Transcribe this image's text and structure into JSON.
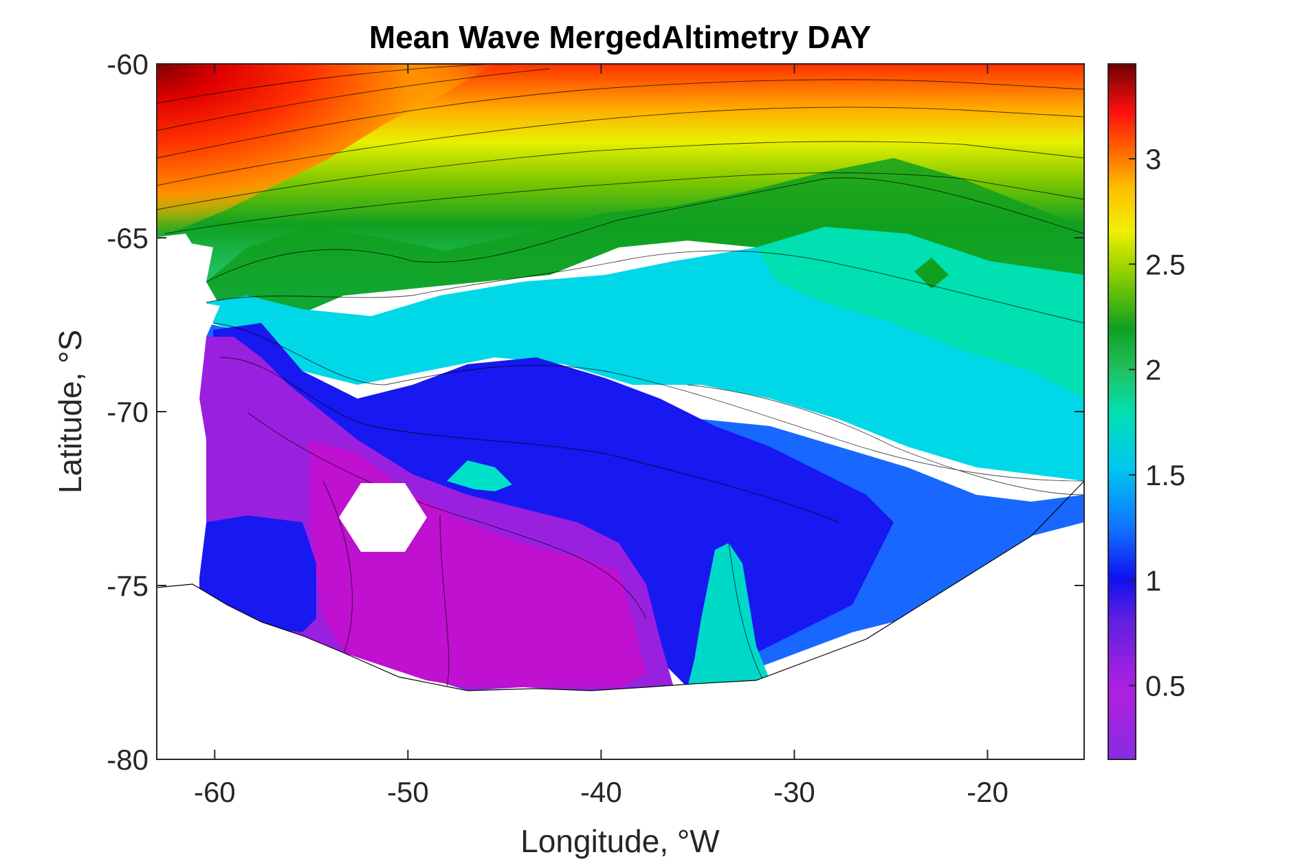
{
  "chart_data": {
    "type": "heatmap",
    "plot_kind": "filled contour map",
    "title": "Mean Wave MergedAltimetry DAY",
    "xlabel": "Longitude, °W",
    "ylabel": "Latitude, °S",
    "xlim": [
      -63,
      -15
    ],
    "ylim": [
      -80,
      -60
    ],
    "xticks": [
      -60,
      -50,
      -40,
      -30,
      -20
    ],
    "yticks": [
      -80,
      -75,
      -70,
      -65,
      -60
    ],
    "colorbar": {
      "range": [
        0.15,
        3.45
      ],
      "ticks": [
        0.5,
        1,
        1.5,
        2,
        2.5,
        3
      ],
      "colormap": "rainbow-purple-to-darkred",
      "colors": [
        "#8a2be2",
        "#a020f0",
        "#c000d0",
        "#5a2ce0",
        "#2020e8",
        "#1060ff",
        "#1e90ff",
        "#00d0e8",
        "#00e0c0",
        "#20c060",
        "#10a020",
        "#7ac000",
        "#e0f000",
        "#ffd000",
        "#ff8000",
        "#ff2000",
        "#c00000",
        "#700000"
      ]
    },
    "grid": false,
    "landmask_color": "#ffffff",
    "features": [
      {
        "region": "northwest corner near -63..-50 W, -60..-64 S",
        "value_range": [
          2.6,
          3.4
        ]
      },
      {
        "region": "northern band near -62 S",
        "value_range": [
          2.2,
          2.6
        ]
      },
      {
        "region": "band near -64 to -66 S",
        "value_range": [
          1.9,
          2.2
        ]
      },
      {
        "region": "eastern green patch near -23 W, -66 S",
        "value": 2.0
      },
      {
        "region": "central blue area near -40 W, -70 S",
        "value_range": [
          0.9,
          1.1
        ]
      },
      {
        "region": "southwest purple/magenta area near -55..-38 W, -72..-78 S",
        "value_range": [
          0.3,
          0.6
        ]
      },
      {
        "region": "cyan spike near -33 W, -75 S",
        "value_range": [
          1.3,
          1.6
        ]
      },
      {
        "region": "cyan spot near -47 W, -72 S",
        "value_range": [
          1.4,
          1.6
        ]
      }
    ]
  }
}
